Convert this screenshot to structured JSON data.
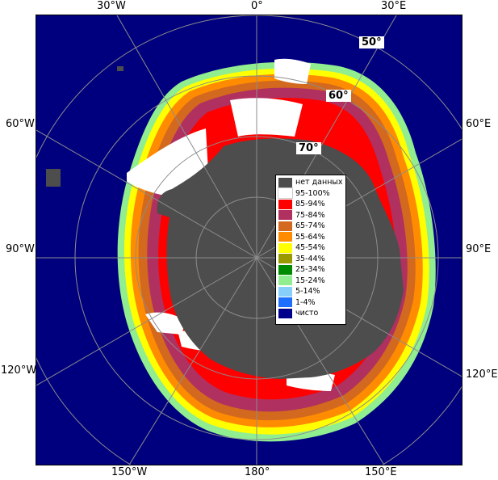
{
  "map": {
    "colors": {
      "no_data": "#4d4d4d",
      "open_water": "#00007f",
      "land_outside": "#4d4d4d",
      "grid": "#8c8c8c"
    },
    "meridian_labels": {
      "top": [
        "30°W",
        "0°",
        "30°E"
      ],
      "left": [
        "60°W",
        "90°W",
        "120°W"
      ],
      "right": [
        "60°E",
        "90°E",
        "120°E"
      ],
      "bottom": [
        "150°W",
        "180°",
        "150°E"
      ]
    },
    "parallel_labels": [
      "50°",
      "60°",
      "70°"
    ]
  },
  "legend": {
    "items": [
      {
        "label": "нет данных",
        "color": "#4d4d4d"
      },
      {
        "label": "95-100%",
        "color": "#ffffff"
      },
      {
        "label": "85-94%",
        "color": "#ff0000"
      },
      {
        "label": "75-84%",
        "color": "#b03060"
      },
      {
        "label": "65-74%",
        "color": "#d2691e"
      },
      {
        "label": "55-64%",
        "color": "#ff8c00"
      },
      {
        "label": "45-54%",
        "color": "#ffff00"
      },
      {
        "label": "35-44%",
        "color": "#9a9a00"
      },
      {
        "label": "25-34%",
        "color": "#008b00"
      },
      {
        "label": "15-24%",
        "color": "#90ee90"
      },
      {
        "label": "5-14%",
        "color": "#87cefa"
      },
      {
        "label": "1-4%",
        "color": "#1e6fff"
      },
      {
        "label": "чисто",
        "color": "#00008b"
      }
    ]
  }
}
